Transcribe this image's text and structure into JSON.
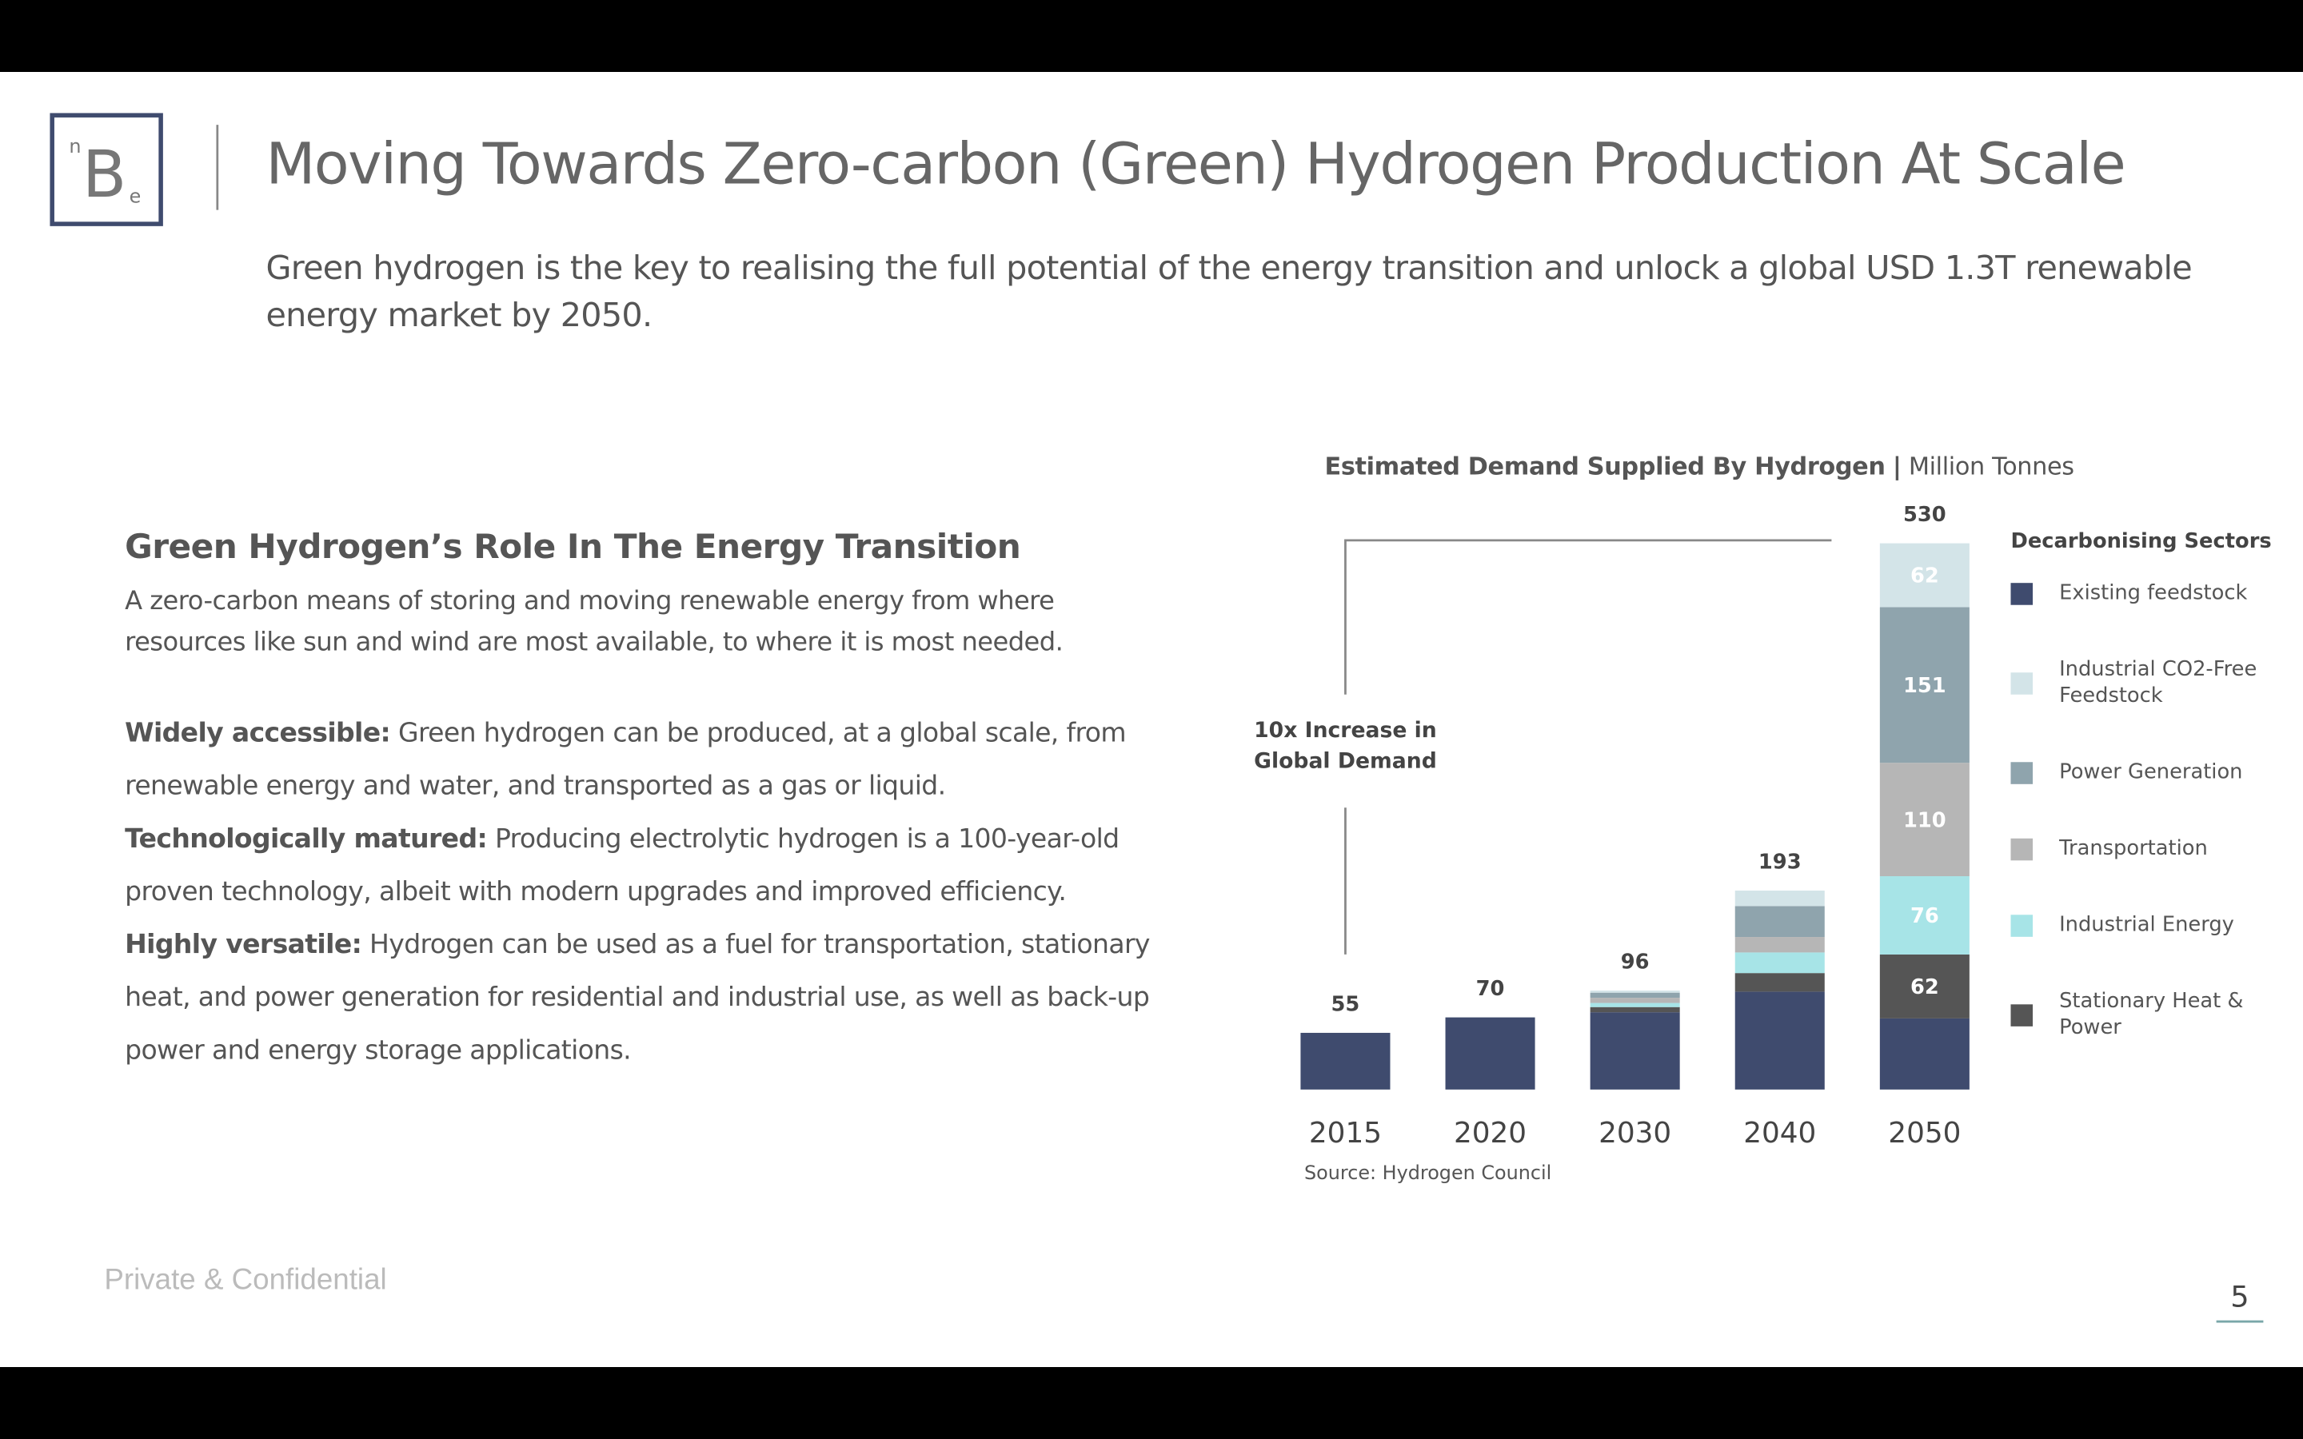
{
  "header": {
    "logo": [
      "n",
      "B",
      "e"
    ],
    "title": "Moving Towards Zero-carbon (Green) Hydrogen Production At Scale",
    "subtitle": "Green hydrogen is the key to realising the full potential of the energy transition and unlock a global USD 1.3T renewable energy market by 2050."
  },
  "section": {
    "heading": "Green Hydrogen’s Role In The Energy Transition",
    "intro": "A zero-carbon means of storing and moving renewable energy from where resources like sun and wind are most available, to where it is most needed.",
    "points": [
      {
        "label": "Widely accessible:",
        "text": "Green hydrogen can be produced, at a global scale, from renewable energy and water, and transported as a gas or liquid."
      },
      {
        "label": "Technologically matured:",
        "text": "Producing electrolytic hydrogen is a 100-year-old proven technology, albeit with modern upgrades and improved efficiency."
      },
      {
        "label": "Highly versatile:",
        "text": "Hydrogen can be used as a fuel for transportation, stationary heat, and power generation for residential and industrial use, as well as back-up power and energy storage applications."
      }
    ]
  },
  "chart_data": {
    "type": "bar",
    "stacked": true,
    "title": "Estimated Demand Supplied By Hydrogen",
    "title_separator": "|",
    "title_unit": "Million Tonnes",
    "legend_title": "Decarbonising Sectors",
    "annotation": "10x Increase in Global Demand",
    "source": "Source: Hydrogen Council",
    "categories": [
      "2015",
      "2020",
      "2030",
      "2040",
      "2050"
    ],
    "totals": [
      55,
      70,
      96,
      193,
      530
    ],
    "series": [
      {
        "name": "Existing feedstock",
        "color": "#3f4b6e",
        "values": [
          55,
          70,
          75,
          95,
          69
        ]
      },
      {
        "name": "Industrial CO2-Free Feedstock",
        "color": "#d3e4e8",
        "values": [
          0,
          0,
          2,
          15,
          62
        ]
      },
      {
        "name": "Power Generation",
        "color": "#8fa4ad",
        "values": [
          0,
          0,
          5,
          30,
          151
        ]
      },
      {
        "name": "Transportation",
        "color": "#b6b6b6",
        "values": [
          0,
          0,
          5,
          15,
          110
        ]
      },
      {
        "name": "Industrial Energy",
        "color": "#a7e4e7",
        "values": [
          0,
          0,
          4,
          20,
          76
        ]
      },
      {
        "name": "Stationary Heat & Power",
        "color": "#555555",
        "values": [
          0,
          0,
          5,
          18,
          62
        ]
      }
    ]
  },
  "footer": {
    "confidential": "Private & Confidential",
    "page": "5"
  }
}
